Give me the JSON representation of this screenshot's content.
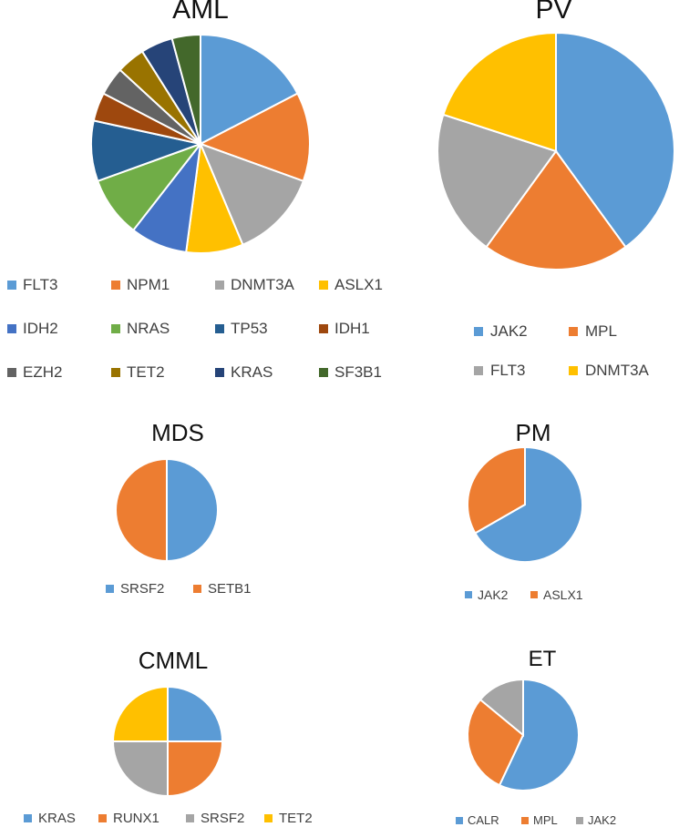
{
  "chart_data": [
    {
      "type": "pie",
      "title": "AML",
      "categories": [
        "FLT3",
        "NPM1",
        "DNMT3A",
        "ASLX1",
        "IDH2",
        "NRAS",
        "TP53",
        "IDH1",
        "EZH2",
        "TET2",
        "KRAS",
        "SF3B1"
      ],
      "values": [
        16.5,
        12.5,
        12.5,
        8,
        8,
        8.5,
        8.5,
        4,
        4,
        4,
        4.5,
        4
      ],
      "colors": [
        "#5b9bd5",
        "#ed7d31",
        "#a5a5a5",
        "#ffc000",
        "#4472c4",
        "#70ad47",
        "#255e91",
        "#9e480e",
        "#636363",
        "#997300",
        "#264478",
        "#43682b"
      ]
    },
    {
      "type": "pie",
      "title": "PV",
      "categories": [
        "JAK2",
        "MPL",
        "FLT3",
        "DNMT3A"
      ],
      "values": [
        40,
        20,
        20,
        20
      ],
      "colors": [
        "#5b9bd5",
        "#ed7d31",
        "#a5a5a5",
        "#ffc000"
      ]
    },
    {
      "type": "pie",
      "title": "MDS",
      "categories": [
        "SRSF2",
        "SETB1"
      ],
      "values": [
        50,
        50
      ],
      "colors": [
        "#5b9bd5",
        "#ed7d31"
      ]
    },
    {
      "type": "pie",
      "title": "PM",
      "categories": [
        "JAK2",
        "ASLX1"
      ],
      "values": [
        66.7,
        33.3
      ],
      "colors": [
        "#5b9bd5",
        "#ed7d31"
      ]
    },
    {
      "type": "pie",
      "title": "CMML",
      "categories": [
        "KRAS",
        "RUNX1",
        "SRSF2",
        "TET2"
      ],
      "values": [
        25,
        25,
        25,
        25
      ],
      "colors": [
        "#5b9bd5",
        "#ed7d31",
        "#a5a5a5",
        "#ffc000"
      ]
    },
    {
      "type": "pie",
      "title": "ET",
      "categories": [
        "CALR",
        "MPL",
        "JAK2"
      ],
      "values": [
        57,
        29,
        14
      ],
      "colors": [
        "#5b9bd5",
        "#ed7d31",
        "#a5a5a5"
      ]
    }
  ]
}
